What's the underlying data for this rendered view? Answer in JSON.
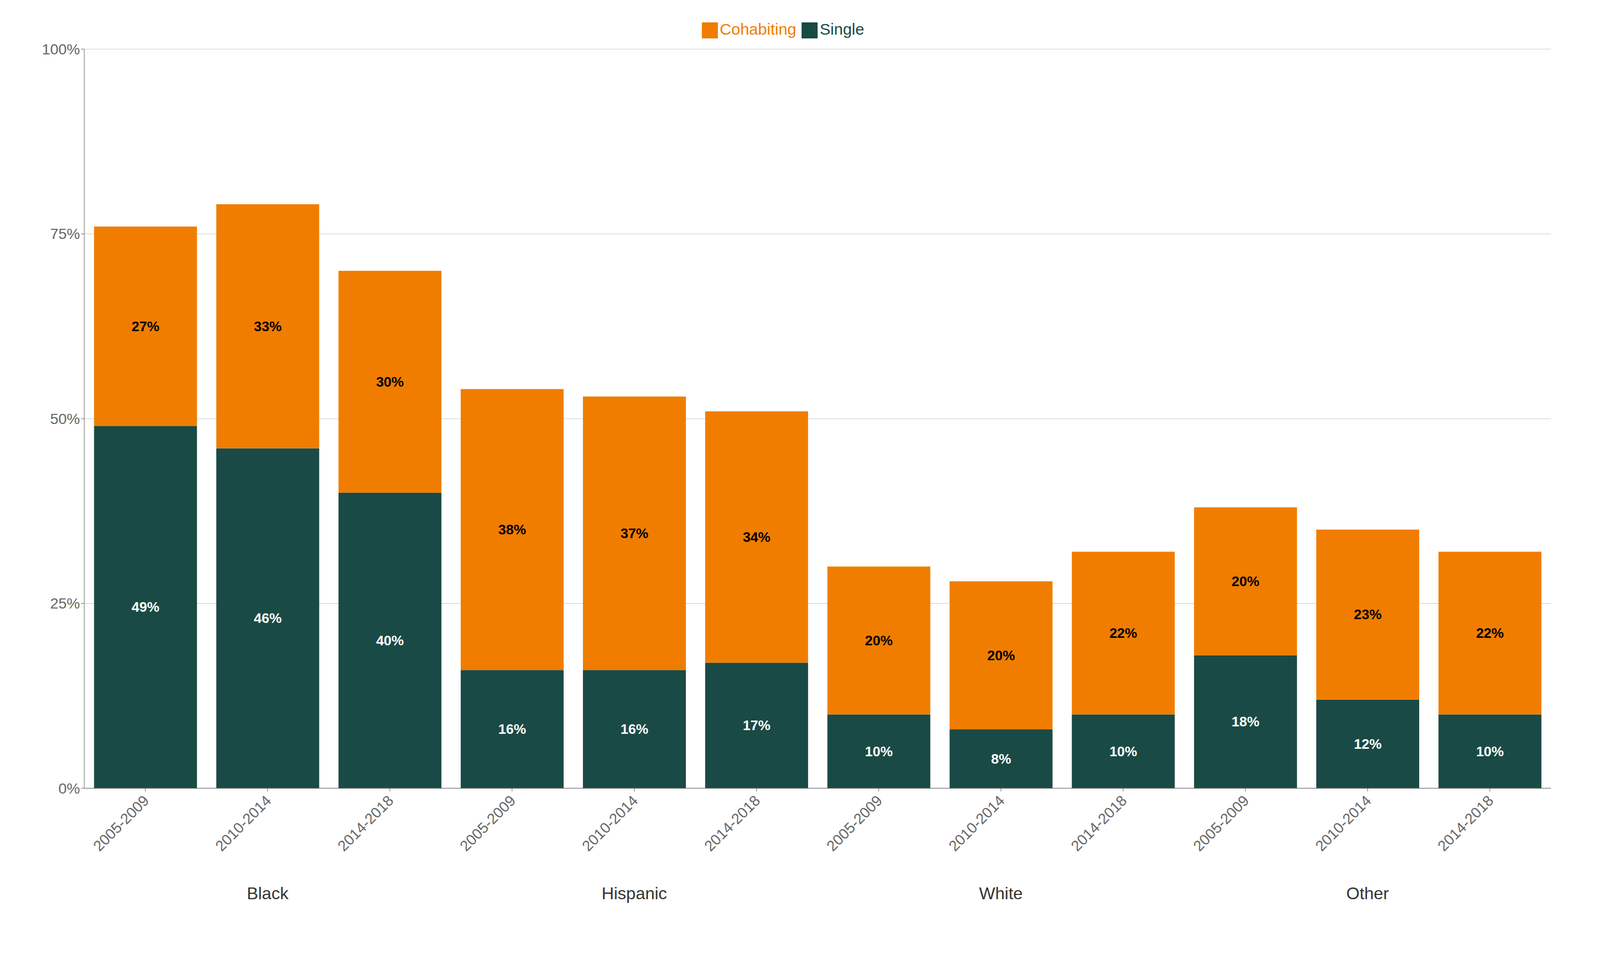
{
  "chart_data": {
    "type": "bar",
    "stacked": true,
    "data_labels": true,
    "grid": true,
    "legend": "top",
    "groups": [
      "Black",
      "Hispanic",
      "White",
      "Other"
    ],
    "categories": [
      "2005-2009",
      "2010-2014",
      "2014-2018",
      "2005-2009",
      "2010-2014",
      "2014-2018",
      "2005-2009",
      "2010-2014",
      "2014-2018",
      "2005-2009",
      "2010-2014",
      "2014-2018"
    ],
    "series": [
      {
        "name": "Single",
        "color": "#1a4a45",
        "values": [
          49,
          46,
          40,
          16,
          16,
          17,
          10,
          8,
          10,
          18,
          12,
          10
        ],
        "value_labels": [
          "49%",
          "46%",
          "40%",
          "16%",
          "16%",
          "17%",
          "10%",
          "8%",
          "10%",
          "18%",
          "12%",
          "10%"
        ]
      },
      {
        "name": "Cohabiting",
        "color": "#f07d00",
        "values": [
          27,
          33,
          30,
          38,
          37,
          34,
          20,
          20,
          22,
          20,
          23,
          22
        ],
        "value_labels": [
          "27%",
          "33%",
          "30%",
          "38%",
          "37%",
          "34%",
          "20%",
          "20%",
          "22%",
          "20%",
          "23%",
          "22%"
        ]
      }
    ],
    "ylim": [
      0,
      100
    ],
    "yticks": [
      {
        "value": 0,
        "label": "0%"
      },
      {
        "value": 25,
        "label": "25%"
      },
      {
        "value": 50,
        "label": "50%"
      },
      {
        "value": 75,
        "label": "75%"
      },
      {
        "value": 100,
        "label": "100%"
      }
    ]
  }
}
